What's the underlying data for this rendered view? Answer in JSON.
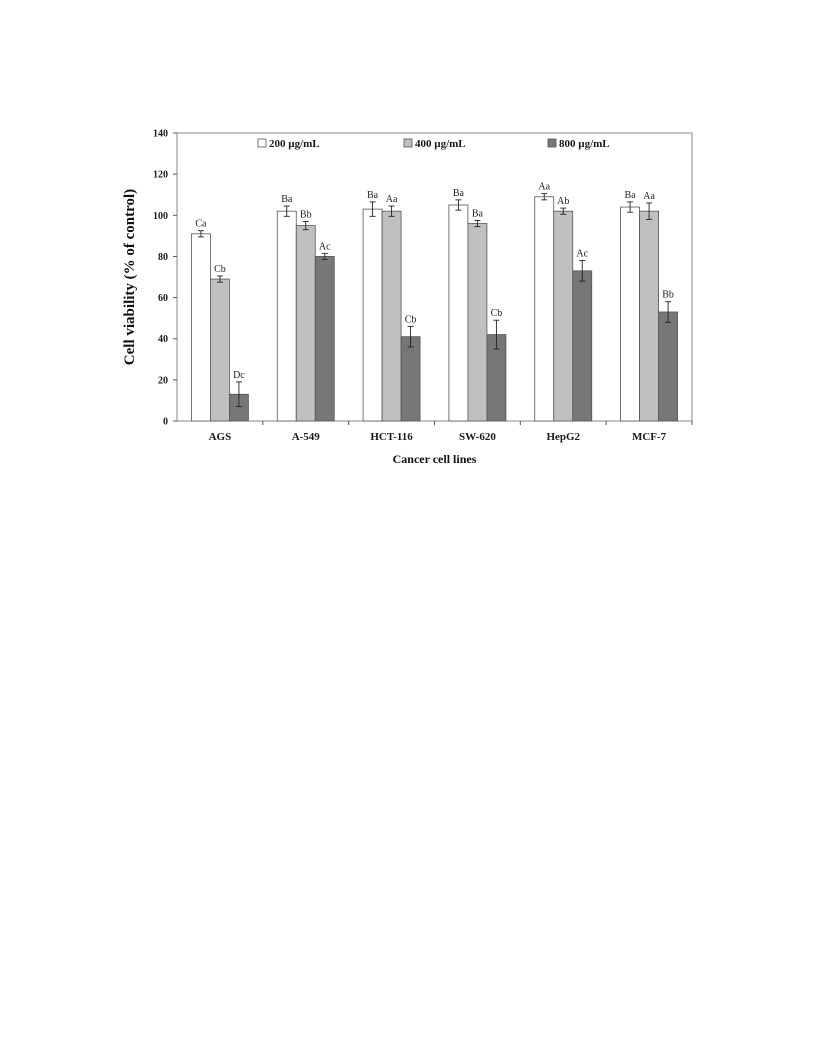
{
  "chart_data": {
    "type": "bar",
    "title": "",
    "xlabel": "Cancer cell lines",
    "ylabel": "Cell viability (% of control)",
    "ylim": [
      0,
      140
    ],
    "yticks": [
      "0",
      "20",
      "40",
      "60",
      "80",
      "100",
      "120",
      "140"
    ],
    "grid": false,
    "legend_position": "top",
    "categories": [
      "AGS",
      "A-549",
      "HCT-116",
      "SW-620",
      "HepG2",
      "MCF-7"
    ],
    "series": [
      {
        "name": "200 µg/mL",
        "color": "#ffffff",
        "values": [
          91,
          102,
          103,
          105,
          109,
          104
        ],
        "errors": [
          1.5,
          2.5,
          3.5,
          2.5,
          1.5,
          2.5
        ],
        "labels": [
          "Ca",
          "Ba",
          "Ba",
          "Ba",
          "Aa",
          "Ba"
        ]
      },
      {
        "name": "400 µg/mL",
        "color": "#c0c0c0",
        "values": [
          69,
          95,
          102,
          96,
          102,
          102
        ],
        "errors": [
          1.5,
          2,
          2.5,
          1.5,
          1.5,
          4
        ],
        "labels": [
          "Cb",
          "Bb",
          "Aa",
          "Ba",
          "Ab",
          "Aa"
        ]
      },
      {
        "name": "800 µg/mL",
        "color": "#777777",
        "values": [
          13,
          80,
          41,
          42,
          73,
          53
        ],
        "errors": [
          6,
          1.5,
          5,
          7,
          5,
          5
        ],
        "labels": [
          "Dc",
          "Ac",
          "Cb",
          "Cb",
          "Ac",
          "Bb"
        ]
      }
    ]
  }
}
